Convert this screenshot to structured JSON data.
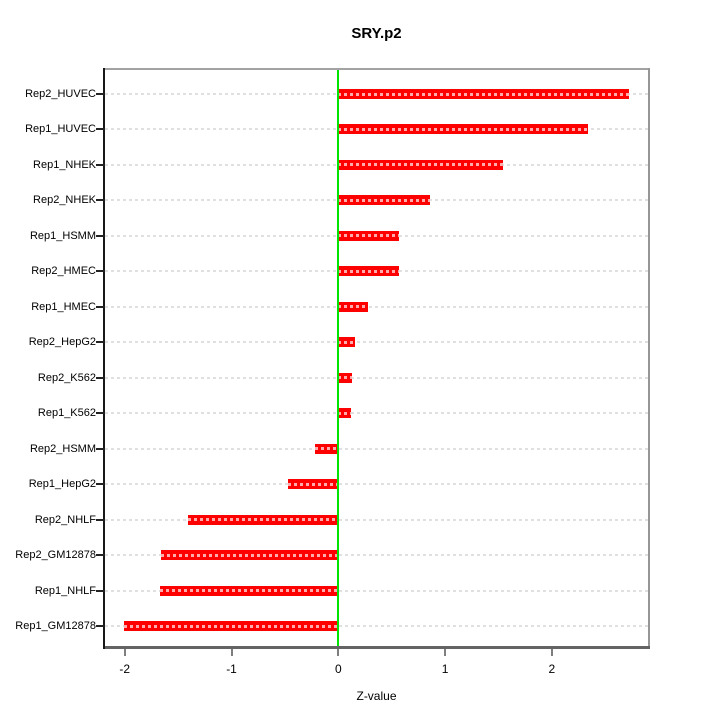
{
  "chart_data": {
    "type": "bar",
    "orientation": "horizontal",
    "title": "SRY.p2",
    "xlabel": "Z-value",
    "categories": [
      "Rep2_HUVEC",
      "Rep1_HUVEC",
      "Rep1_NHEK",
      "Rep2_NHEK",
      "Rep1_HSMM",
      "Rep2_HMEC",
      "Rep1_HMEC",
      "Rep2_HepG2",
      "Rep2_K562",
      "Rep1_K562",
      "Rep2_HSMM",
      "Rep1_HepG2",
      "Rep2_NHLF",
      "Rep2_GM12878",
      "Rep1_NHLF",
      "Rep1_GM12878"
    ],
    "values": [
      2.72,
      2.34,
      1.54,
      0.86,
      0.57,
      0.57,
      0.28,
      0.16,
      0.13,
      0.12,
      -0.22,
      -0.47,
      -1.41,
      -1.66,
      -1.67,
      -2.01
    ],
    "xlim": [
      -2.185,
      2.9
    ],
    "x_ticks": [
      -2,
      -1,
      0,
      1,
      2
    ],
    "x_tick_labels": [
      "-2",
      "-1",
      "0",
      "1",
      "2"
    ],
    "grid": "dashed-horizontal-rows",
    "legend": "none",
    "zero_line_x": 0,
    "colors": {
      "bar": "#FF0000",
      "bar_dash": "#FFABAB",
      "zero_line": "#00E400",
      "grid_line": "#E0E0E0",
      "axis_text": "#000000",
      "x_tick_mark": "#7F7F7F",
      "y_tick_mark": "#222222",
      "border_top": "#A3A3A3",
      "border_right": "#969696",
      "border_bottom": "#646464",
      "border_left": "#181818"
    }
  }
}
